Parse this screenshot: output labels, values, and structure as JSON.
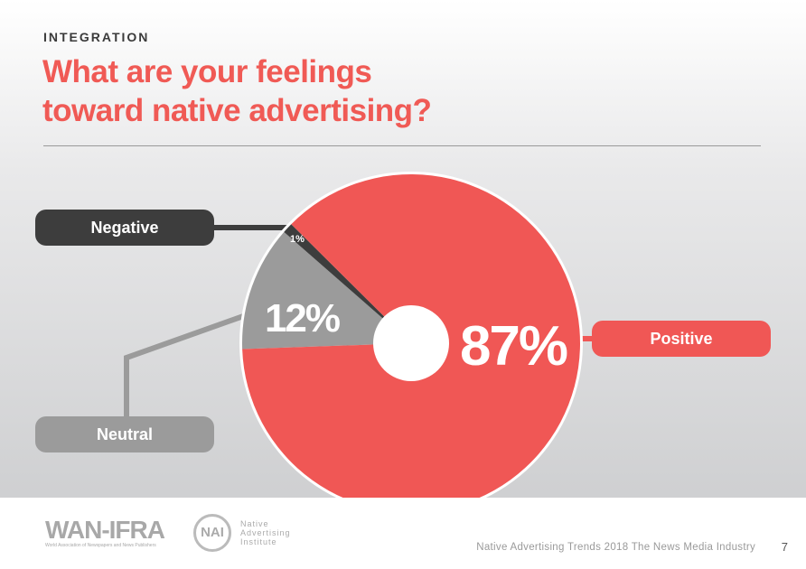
{
  "header": {
    "eyebrow": "INTEGRATION",
    "title_line1": "What are your feelings",
    "title_line2": "toward native advertising?"
  },
  "chart_data": {
    "type": "pie",
    "title": "What are your feelings toward native advertising?",
    "slices": [
      {
        "label": "Positive",
        "value": 87,
        "display": "87%",
        "color": "#f05755"
      },
      {
        "label": "Neutral",
        "value": 12,
        "display": "12%",
        "color": "#9b9b9b"
      },
      {
        "label": "Negative",
        "value": 1,
        "display": "1%",
        "color": "#3d3d3d"
      }
    ],
    "donut_hole": true
  },
  "footer": {
    "logo1": "WAN-IFRA",
    "logo1_sub": "World Association of Newspapers and News Publishers",
    "logo2": "Native Advertising Institute",
    "publication": "Native Advertising Trends 2018   The News Media Industry",
    "page": "7"
  }
}
